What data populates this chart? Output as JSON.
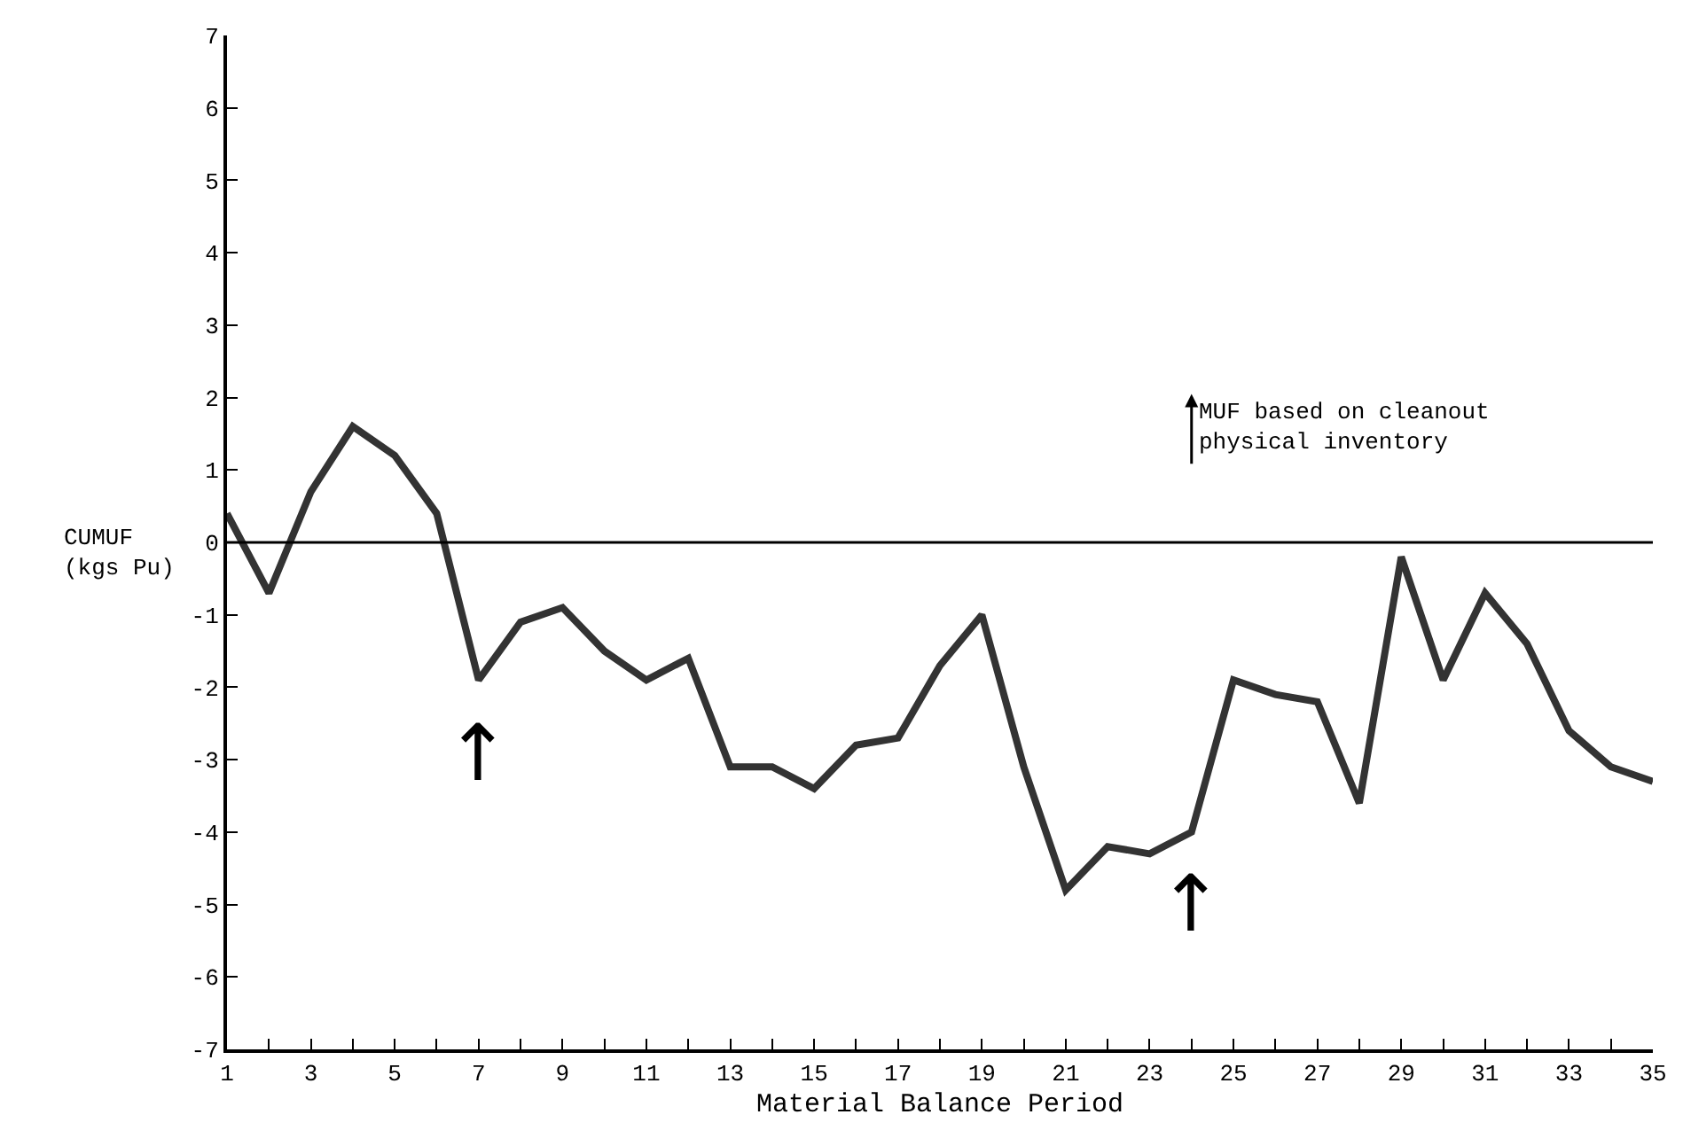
{
  "chart_data": {
    "type": "line",
    "xlabel": "Material Balance Period",
    "ylabel": "CUMUF\n(kgs Pu)",
    "x": [
      1,
      2,
      3,
      4,
      5,
      6,
      7,
      8,
      9,
      10,
      11,
      12,
      13,
      14,
      15,
      16,
      17,
      18,
      19,
      20,
      21,
      22,
      23,
      24,
      25,
      26,
      27,
      28,
      29,
      30,
      31,
      32,
      33,
      34,
      35
    ],
    "series": [
      {
        "color": "#333333",
        "values": [
          0.4,
          -0.7,
          0.7,
          1.6,
          1.2,
          0.4,
          -1.9,
          -1.1,
          -0.9,
          -1.5,
          -1.9,
          -1.6,
          -3.1,
          -3.1,
          -3.4,
          -2.8,
          -2.7,
          -1.7,
          -1.0,
          -3.1,
          -4.8,
          -4.2,
          -4.3,
          -4.0,
          -1.9,
          -2.1,
          -2.2,
          -3.6,
          -0.2,
          -1.9,
          -0.7,
          -1.4,
          -2.6,
          -3.1,
          -3.3
        ]
      }
    ],
    "xlim": [
      1,
      35
    ],
    "xticks": [
      1,
      {
        "value": 2,
        "label": null
      },
      3,
      {
        "value": 4,
        "label": null
      },
      5,
      {
        "value": 6,
        "label": null
      },
      7,
      {
        "value": 8,
        "label": null
      },
      9,
      {
        "value": 10,
        "label": null
      },
      11,
      {
        "value": 12,
        "label": null
      },
      13,
      {
        "value": 14,
        "label": null
      },
      15,
      {
        "value": 16,
        "label": null
      },
      17,
      {
        "value": 18,
        "label": null
      },
      19,
      {
        "value": 20,
        "label": null
      },
      21,
      {
        "value": 22,
        "label": null
      },
      23,
      {
        "value": 24,
        "label": null
      },
      25,
      {
        "value": 26,
        "label": null
      },
      27,
      {
        "value": 28,
        "label": null
      },
      29,
      {
        "value": 30,
        "label": null
      },
      31,
      {
        "value": 32,
        "label": null
      },
      33,
      {
        "value": 34,
        "label": null
      },
      35
    ],
    "ylim": [
      -7,
      7
    ],
    "yticks": [
      -7,
      -6,
      -5,
      -4,
      -3,
      -2,
      -1,
      0,
      1,
      2,
      3,
      4,
      5,
      6,
      7
    ],
    "ref_lines": [
      {
        "axis": "y",
        "value": 0,
        "color": "#000000"
      }
    ],
    "annotations": [
      "MUF based on cleanout\nphysical inventory",
      {
        "text": "↑",
        "x": 7,
        "y": -1.9
      },
      {
        "text": "↑",
        "x": 24,
        "y": -4.0
      }
    ],
    "marker": "none",
    "line_style": "solid"
  }
}
